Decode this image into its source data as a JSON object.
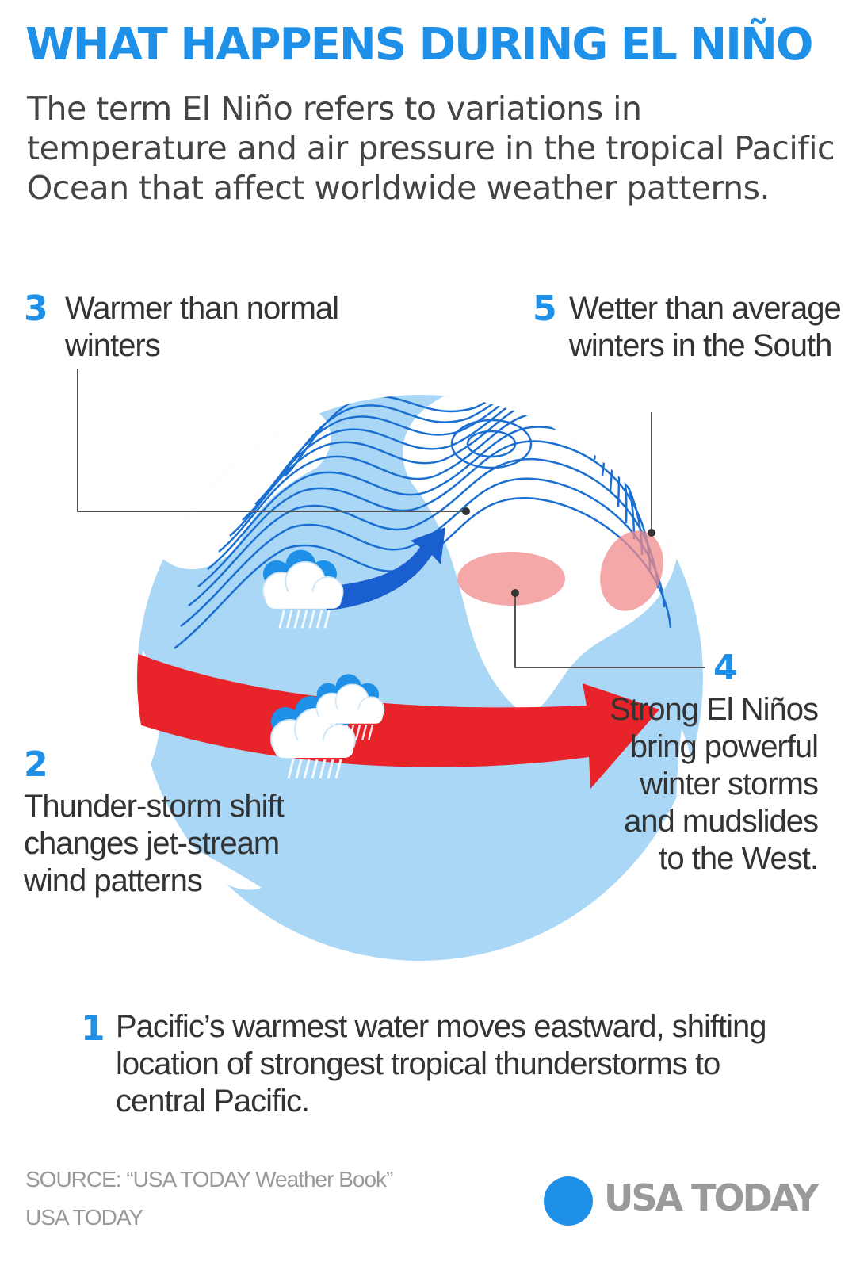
{
  "header": {
    "title": "WHAT HAPPENS DURING EL NIÑO",
    "intro": "The term El Niño refers to variations in temperature and air pressure in the tropical Pacific Ocean that affect worldwide weather patterns."
  },
  "callouts": [
    {
      "number": "1",
      "text": "Pacific’s warmest water moves eastward, shifting location of strongest tropical thunderstorms to central Pacific."
    },
    {
      "number": "2",
      "text": "Thunder-storm shift changes jet-stream wind patterns"
    },
    {
      "number": "3",
      "text": "Warmer than normal winters"
    },
    {
      "number": "4",
      "text": "Strong El Niños bring powerful winter storms and mudslides to the West."
    },
    {
      "number": "5",
      "text": "Wetter than average winters in the South"
    }
  ],
  "footer": {
    "source": "SOURCE: “USA TODAY Weather Book”",
    "credit": "USA TODAY",
    "logo_text": "USA TODAY"
  },
  "colors": {
    "accent_blue": "#1e90e8",
    "ocean": "#a9d7f5",
    "land": "#ffffff",
    "isobar": "#1a6fd0",
    "warm_arrow": "#e8232a",
    "jet_arrow": "#1a5fd0",
    "storm_zone": "#f08b8b"
  },
  "icons": [
    "storm-cloud-icon",
    "jet-stream-arrow-icon",
    "warm-water-arrow-icon",
    "usa-today-logo-icon"
  ]
}
